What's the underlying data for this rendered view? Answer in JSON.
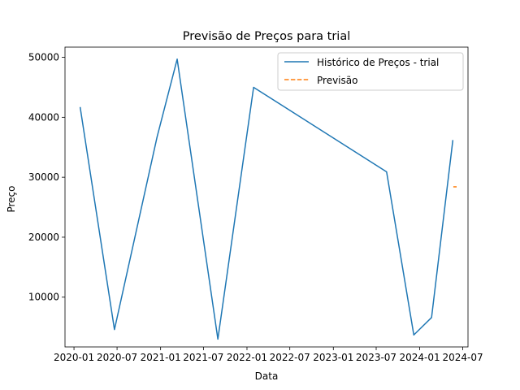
{
  "chart_data": {
    "type": "line",
    "title": "Previsão de Preços para trial",
    "xlabel": "Data",
    "ylabel": "Preço",
    "xlim": [
      "2019-11-24",
      "2024-07-23"
    ],
    "ylim": [
      1700,
      51700
    ],
    "x_ticks": [
      "2020-01",
      "2020-07",
      "2021-01",
      "2021-07",
      "2022-01",
      "2022-07",
      "2023-01",
      "2023-07",
      "2024-01",
      "2024-07"
    ],
    "y_ticks": [
      10000,
      20000,
      30000,
      40000,
      50000
    ],
    "legend_position": "top-right",
    "grid": false,
    "series": [
      {
        "name": "Histórico de Preços - trial",
        "color": "#1f77b4",
        "style": "solid",
        "points": [
          {
            "x": "2020-01-27",
            "y": 41700
          },
          {
            "x": "2020-06-20",
            "y": 4600
          },
          {
            "x": "2020-12-17",
            "y": 36700
          },
          {
            "x": "2021-03-12",
            "y": 49700
          },
          {
            "x": "2021-08-31",
            "y": 3000
          },
          {
            "x": "2022-01-29",
            "y": 45000
          },
          {
            "x": "2023-08-14",
            "y": 30900
          },
          {
            "x": "2023-12-07",
            "y": 3700
          },
          {
            "x": "2024-02-20",
            "y": 6600
          },
          {
            "x": "2024-05-20",
            "y": 36200
          }
        ]
      },
      {
        "name": "Previsão",
        "color": "#ff7f0e",
        "style": "dashed",
        "points": [
          {
            "x": "2024-05-22",
            "y": 28400
          },
          {
            "x": "2024-06-05",
            "y": 28400
          }
        ]
      }
    ]
  }
}
